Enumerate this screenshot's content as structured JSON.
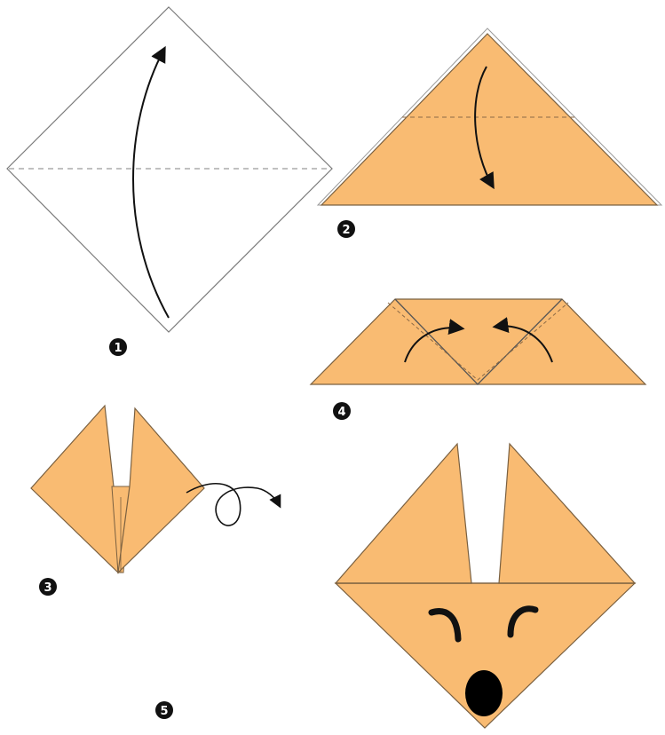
{
  "colors": {
    "paper": "#f9bb72",
    "white_paper": "#ffffff",
    "outline": "#7a7a7a",
    "fold_line": "#8c6a46",
    "ink": "#111111",
    "badge_fill": "#111111",
    "badge_text": "#ffffff"
  },
  "steps": [
    {
      "number": "1",
      "icon": "diamond-square-with-upward-arrow"
    },
    {
      "number": "2",
      "icon": "triangle-fold-down-arrow"
    },
    {
      "number": "3",
      "icon": "fox-head-turn-over-loop-arrow"
    },
    {
      "number": "4",
      "icon": "triangle-corners-fold-arrows"
    },
    {
      "number": "5",
      "icon": "finished-fox-face"
    }
  ]
}
